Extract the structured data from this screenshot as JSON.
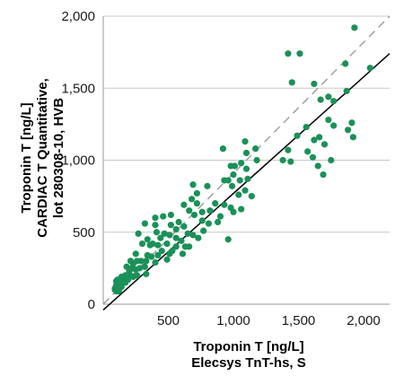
{
  "chart_data": {
    "type": "scatter",
    "title": "",
    "xlabel": [
      "Troponin T [ng/L]",
      "Elecsys TnT-hs, S"
    ],
    "ylabel": [
      "Troponin T [ng/L]",
      "CARDIAC T Quantitative,",
      "lot 280308-10, HVB"
    ],
    "xlim": [
      0,
      2200
    ],
    "ylim": [
      0,
      2000
    ],
    "x_ticks": [
      500,
      1000,
      1500,
      2000
    ],
    "x_tick_labels": [
      "500",
      "1,000",
      "1,500",
      "2,000"
    ],
    "y_ticks": [
      0,
      500,
      1000,
      1500,
      2000
    ],
    "y_tick_labels": [
      "0",
      "500",
      "1,000",
      "1,500",
      "2,000"
    ],
    "grid": "horizontal",
    "colors": {
      "points": "#1a9158",
      "regression": "#000000",
      "identity": "#a0a0a0",
      "grid": "#c8c8c8"
    },
    "lines": [
      {
        "kind": "regression",
        "style": "solid",
        "x": [
          0,
          2200
        ],
        "y": [
          -40,
          1740
        ]
      },
      {
        "kind": "identity",
        "style": "dashed",
        "x": [
          0,
          2200
        ],
        "y": [
          0,
          2000
        ]
      }
    ],
    "points": [
      [
        1930,
        1920
      ],
      [
        2050,
        1640
      ],
      [
        1860,
        1670
      ],
      [
        1620,
        1530
      ],
      [
        1420,
        1740
      ],
      [
        1510,
        1740
      ],
      [
        1450,
        1540
      ],
      [
        1730,
        1440
      ],
      [
        1770,
        1410
      ],
      [
        1870,
        1480
      ],
      [
        1670,
        1420
      ],
      [
        1910,
        1260
      ],
      [
        1730,
        1280
      ],
      [
        1770,
        1240
      ],
      [
        1560,
        1230
      ],
      [
        1660,
        1160
      ],
      [
        1620,
        1140
      ],
      [
        1700,
        1110
      ],
      [
        1490,
        1170
      ],
      [
        1420,
        1070
      ],
      [
        1570,
        1060
      ],
      [
        1610,
        1020
      ],
      [
        1440,
        990
      ],
      [
        1380,
        1000
      ],
      [
        1650,
        960
      ],
      [
        1690,
        900
      ],
      [
        1880,
        1210
      ],
      [
        1920,
        1160
      ],
      [
        1750,
        1000
      ],
      [
        1090,
        1130
      ],
      [
        1100,
        1050
      ],
      [
        920,
        1080
      ],
      [
        1170,
        1080
      ],
      [
        1180,
        1000
      ],
      [
        1060,
        980
      ],
      [
        980,
        960
      ],
      [
        1010,
        960
      ],
      [
        1100,
        940
      ],
      [
        1000,
        900
      ],
      [
        1050,
        860
      ],
      [
        1110,
        870
      ],
      [
        960,
        860
      ],
      [
        930,
        860
      ],
      [
        990,
        820
      ],
      [
        1140,
        750
      ],
      [
        1090,
        790
      ],
      [
        1040,
        760
      ],
      [
        800,
        820
      ],
      [
        690,
        830
      ],
      [
        720,
        770
      ],
      [
        680,
        730
      ],
      [
        860,
        700
      ],
      [
        820,
        650
      ],
      [
        720,
        700
      ],
      [
        700,
        620
      ],
      [
        660,
        650
      ],
      [
        760,
        640
      ],
      [
        930,
        690
      ],
      [
        980,
        670
      ],
      [
        1000,
        640
      ],
      [
        1060,
        660
      ],
      [
        900,
        610
      ],
      [
        880,
        570
      ],
      [
        810,
        560
      ],
      [
        760,
        580
      ],
      [
        770,
        510
      ],
      [
        690,
        480
      ],
      [
        730,
        460
      ],
      [
        650,
        490
      ],
      [
        620,
        540
      ],
      [
        580,
        570
      ],
      [
        560,
        520
      ],
      [
        520,
        550
      ],
      [
        560,
        460
      ],
      [
        510,
        480
      ],
      [
        470,
        490
      ],
      [
        440,
        460
      ],
      [
        490,
        420
      ],
      [
        420,
        410
      ],
      [
        380,
        420
      ],
      [
        600,
        440
      ],
      [
        630,
        400
      ],
      [
        660,
        400
      ],
      [
        560,
        400
      ],
      [
        530,
        370
      ],
      [
        610,
        350
      ],
      [
        510,
        350
      ],
      [
        450,
        370
      ],
      [
        420,
        340
      ],
      [
        370,
        330
      ],
      [
        340,
        340
      ],
      [
        330,
        300
      ],
      [
        290,
        300
      ],
      [
        260,
        300
      ],
      [
        210,
        300
      ],
      [
        250,
        350
      ],
      [
        300,
        420
      ],
      [
        360,
        410
      ],
      [
        340,
        450
      ],
      [
        270,
        490
      ],
      [
        410,
        500
      ],
      [
        400,
        550
      ],
      [
        320,
        560
      ],
      [
        400,
        600
      ],
      [
        460,
        610
      ],
      [
        520,
        620
      ],
      [
        620,
        690
      ],
      [
        960,
        450
      ],
      [
        490,
        310
      ],
      [
        400,
        290
      ],
      [
        320,
        260
      ],
      [
        280,
        250
      ],
      [
        250,
        240
      ],
      [
        220,
        250
      ],
      [
        180,
        260
      ],
      [
        200,
        210
      ],
      [
        170,
        200
      ],
      [
        150,
        180
      ],
      [
        140,
        190
      ],
      [
        110,
        170
      ],
      [
        100,
        160
      ],
      [
        120,
        150
      ],
      [
        130,
        140
      ],
      [
        100,
        130
      ],
      [
        90,
        110
      ],
      [
        110,
        110
      ],
      [
        140,
        120
      ],
      [
        90,
        100
      ],
      [
        100,
        90
      ],
      [
        120,
        90
      ],
      [
        150,
        160
      ],
      [
        170,
        150
      ],
      [
        190,
        170
      ],
      [
        230,
        190
      ],
      [
        260,
        200
      ],
      [
        330,
        210
      ],
      [
        200,
        230
      ],
      [
        230,
        280
      ]
    ]
  }
}
